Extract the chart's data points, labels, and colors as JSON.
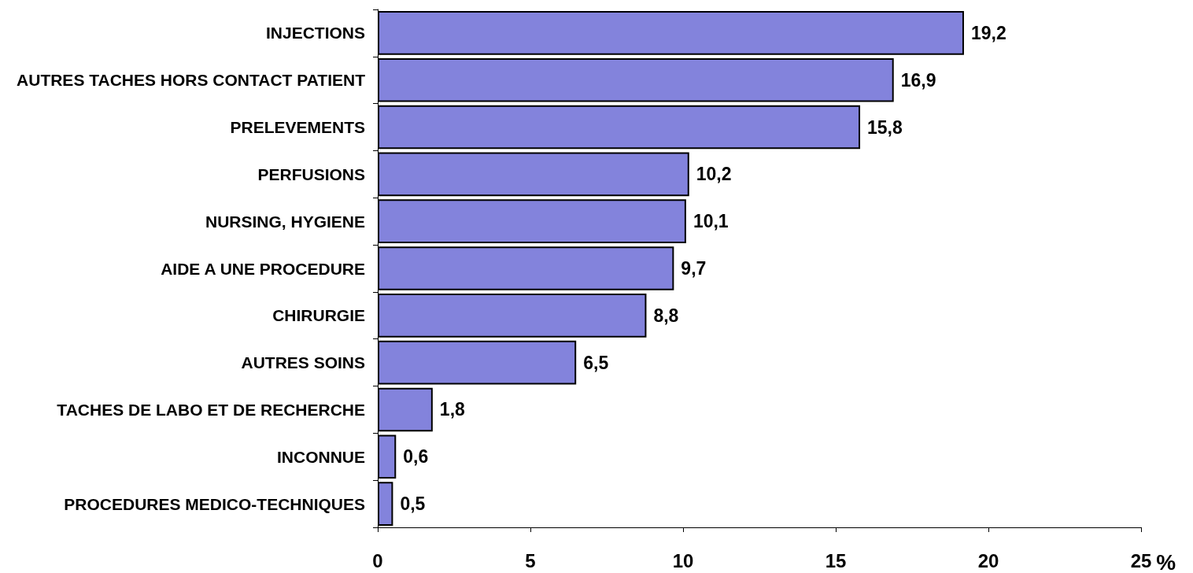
{
  "chart_data": {
    "type": "bar",
    "orientation": "horizontal",
    "xlabel": "%",
    "categories": [
      "INJECTIONS",
      "AUTRES TACHES HORS CONTACT PATIENT",
      "PRELEVEMENTS",
      "PERFUSIONS",
      "NURSING, HYGIENE",
      "AIDE A UNE PROCEDURE",
      "CHIRURGIE",
      "AUTRES SOINS",
      "TACHES DE LABO ET DE RECHERCHE",
      "INCONNUE",
      "PROCEDURES MEDICO-TECHNIQUES"
    ],
    "values": [
      19.2,
      16.9,
      15.8,
      10.2,
      10.1,
      9.7,
      8.8,
      6.5,
      1.8,
      0.6,
      0.5
    ],
    "value_labels": [
      "19,2",
      "16,9",
      "15,8",
      "10,2",
      "10,1",
      "9,7",
      "8,8",
      "6,5",
      "1,8",
      "0,6",
      "0,5"
    ],
    "color": "#8383dc",
    "xlim": [
      0,
      25
    ],
    "xticks": [
      0,
      5,
      10,
      15,
      20,
      25
    ],
    "grid": false
  }
}
